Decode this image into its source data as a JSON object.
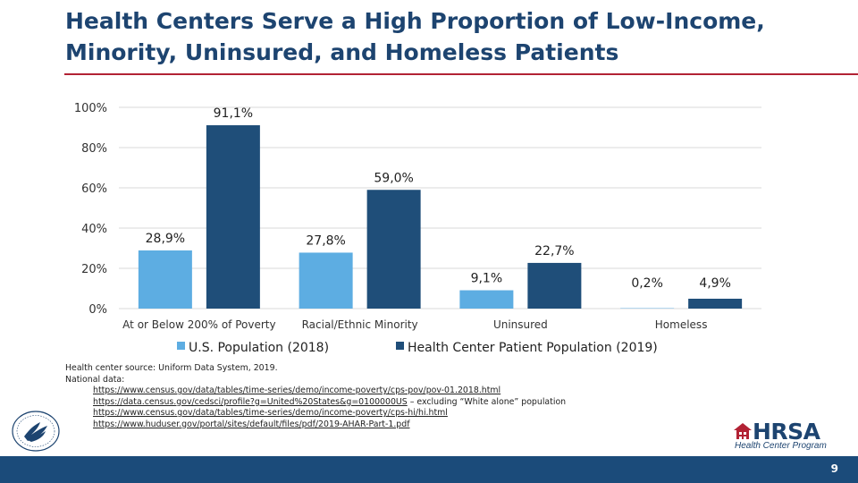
{
  "title": "Health Centers Serve a High Proportion of Low-Income, Minority, Uninsured, and Homeless Patients",
  "chart_data": {
    "type": "bar",
    "categories": [
      "At or Below 200% of Poverty",
      "Racial/Ethnic Minority",
      "Uninsured",
      "Homeless"
    ],
    "series": [
      {
        "name": "U.S. Population (2018)",
        "values": [
          28.9,
          27.8,
          9.1,
          0.2
        ],
        "labels": [
          "28,9%",
          "27,8%",
          "9,1%",
          "0,2%"
        ],
        "color": "#5dade2"
      },
      {
        "name": "Health Center Patient Population (2019)",
        "values": [
          91.1,
          59.0,
          22.7,
          4.9
        ],
        "labels": [
          "91,1%",
          "59,0%",
          "22,7%",
          "4,9%"
        ],
        "color": "#1f4e79"
      }
    ],
    "yticks": [
      {
        "value": 0,
        "label": "0%"
      },
      {
        "value": 20,
        "label": "20%"
      },
      {
        "value": 40,
        "label": "40%"
      },
      {
        "value": 60,
        "label": "60%"
      },
      {
        "value": 80,
        "label": "80%"
      },
      {
        "value": 100,
        "label": "100%"
      }
    ],
    "ylim": [
      0,
      100
    ],
    "grid": true,
    "legend_position": "bottom"
  },
  "sources": {
    "health_center": "Health center source: Uniform Data System, 2019.",
    "national_label": "National data:",
    "links": [
      {
        "url": "https://www.census.gov/data/tables/time-series/demo/income-poverty/cps-pov/pov-01.2018.html",
        "note": ""
      },
      {
        "url": "https://data.census.gov/cedsci/profile?g=United%20States&g=0100000US",
        "note": " – excluding “White alone” population"
      },
      {
        "url": "https://www.census.gov/data/tables/time-series/demo/income-poverty/cps-hi/hi.html",
        "note": ""
      },
      {
        "url": "https://www.huduser.gov/portal/sites/default/files/pdf/2019-AHAR-Part-1.pdf",
        "note": ""
      }
    ]
  },
  "logo": {
    "word": "HRSA",
    "sub": "Health Center Program"
  },
  "footer": {
    "page_number": "9",
    "color": "#1b4b7a"
  }
}
